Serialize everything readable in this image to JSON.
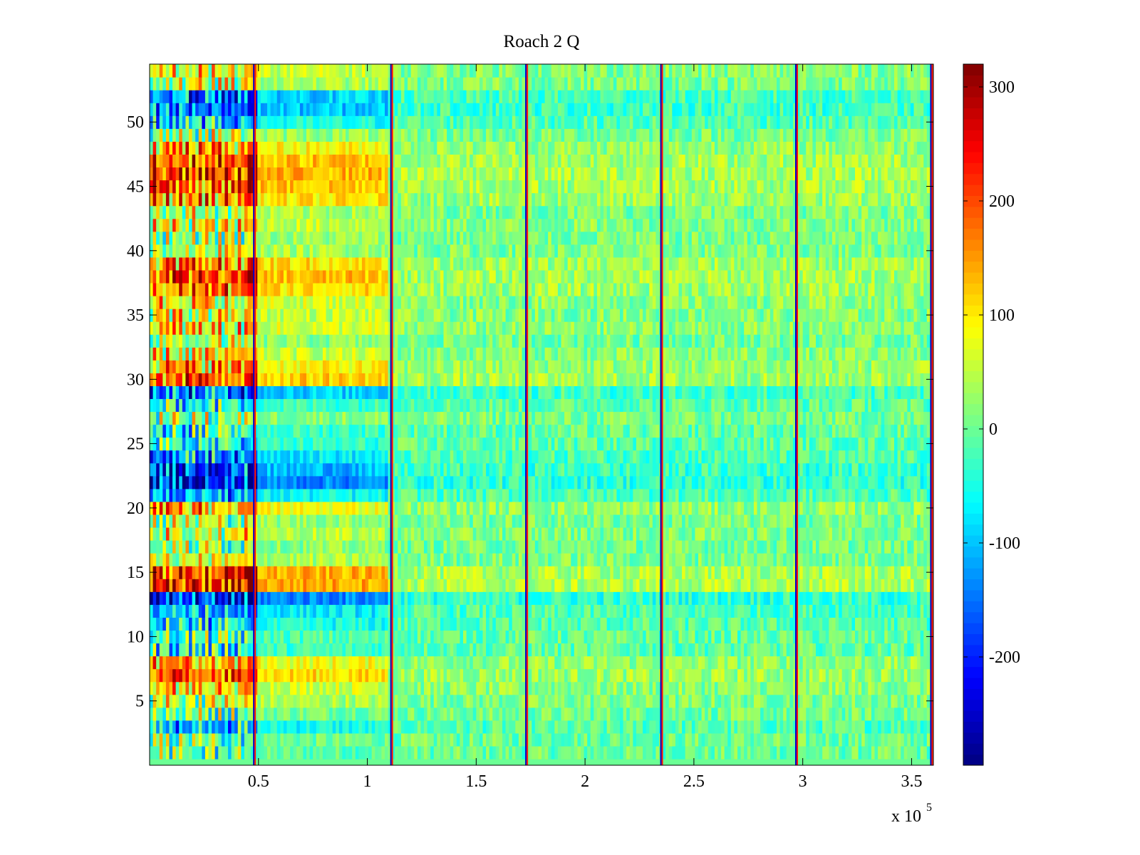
{
  "chart_data": {
    "type": "heatmap",
    "title": "Roach 2 Q",
    "xlabel": "",
    "ylabel": "",
    "x_multiplier_label": {
      "base": "x 10",
      "exponent": "5"
    },
    "xlim": [
      0,
      3.6
    ],
    "ylim": [
      0,
      54.5
    ],
    "x_ticks": [
      0.5,
      1,
      1.5,
      2,
      2.5,
      3,
      3.5
    ],
    "x_tick_labels": [
      "0.5",
      "1",
      "1.5",
      "2",
      "2.5",
      "3",
      "3.5"
    ],
    "y_ticks": [
      5,
      10,
      15,
      20,
      25,
      30,
      35,
      40,
      45,
      50
    ],
    "y_tick_labels": [
      "5",
      "10",
      "15",
      "20",
      "25",
      "30",
      "35",
      "40",
      "45",
      "50"
    ],
    "colormap": "jet",
    "clim": [
      -295,
      320
    ],
    "colorbar_ticks": [
      300,
      200,
      100,
      0,
      -100,
      -200
    ],
    "colorbar_tick_labels": [
      "300",
      "200",
      "100",
      "0",
      "-100",
      "-200"
    ],
    "rows": 54,
    "segment_boundaries_x": [
      0.48,
      1.11,
      1.73,
      2.35,
      2.97,
      3.59
    ],
    "row_bias": {
      "description": "approximate mean Q per row band (rows 1-54) in the first segment after 0.5e5",
      "values": [
        -10,
        0,
        -60,
        10,
        40,
        70,
        120,
        90,
        -30,
        -20,
        -60,
        -80,
        -150,
        160,
        150,
        40,
        20,
        50,
        30,
        90,
        -70,
        -150,
        -120,
        -80,
        -40,
        -30,
        20,
        -30,
        -100,
        130,
        100,
        60,
        20,
        70,
        60,
        70,
        120,
        140,
        120,
        40,
        30,
        60,
        40,
        110,
        140,
        150,
        140,
        100,
        30,
        -60,
        -110,
        -100,
        40,
        60
      ]
    }
  }
}
